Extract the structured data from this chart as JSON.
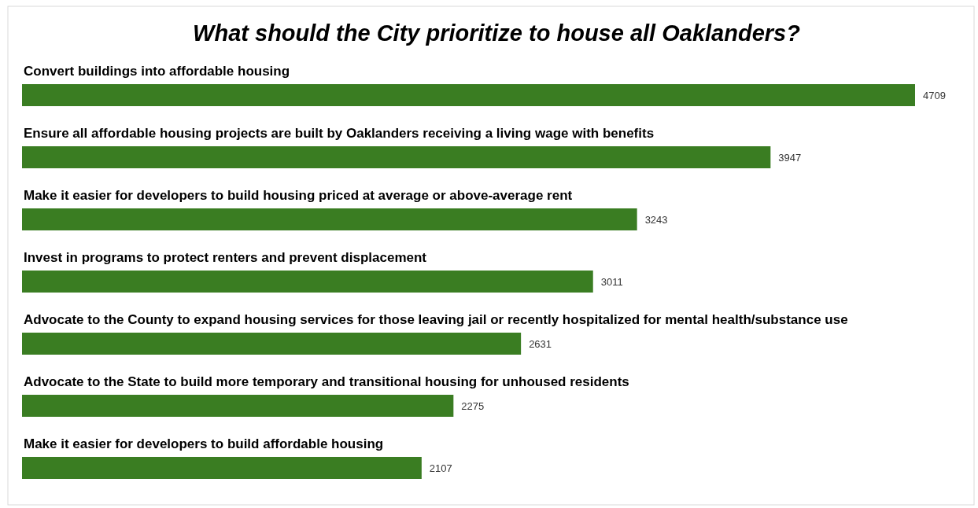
{
  "chart_data": {
    "type": "bar",
    "orientation": "horizontal",
    "title": "What should the City prioritize to house all Oaklanders?",
    "categories": [
      "Convert buildings into affordable housing",
      "Ensure all affordable housing projects are built by Oaklanders receiving a living wage with benefits",
      "Make it easier for developers to build housing priced at average or above-average rent",
      "Invest in programs to protect renters and prevent displacement",
      "Advocate to the County to expand housing services for those leaving jail or recently hospitalized for mental health/substance use",
      "Advocate to the State to build more temporary and transitional housing for unhoused residents",
      "Make it easier for developers to build affordable housing"
    ],
    "values": [
      4709,
      3947,
      3243,
      3011,
      2631,
      2275,
      2107
    ],
    "color": "#3a7d22",
    "data_labels": true,
    "relative": false
  }
}
